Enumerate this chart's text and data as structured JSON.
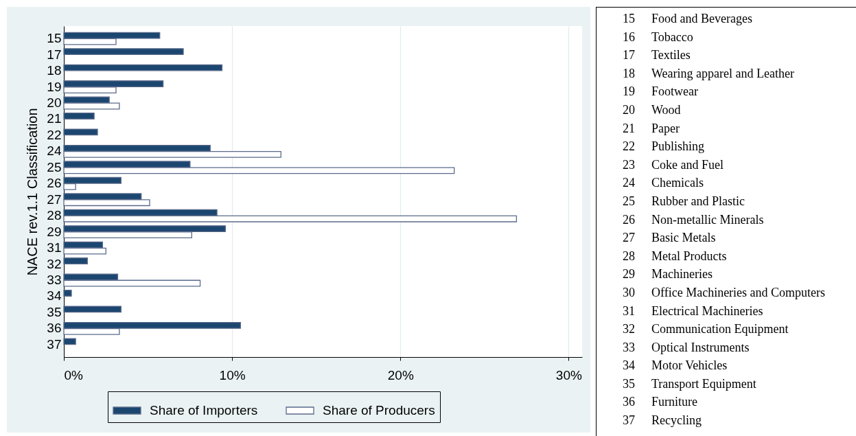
{
  "chart_data": {
    "type": "bar",
    "orientation": "horizontal",
    "ylabel": "NACE rev.1.1 Classification",
    "categories": [
      "15",
      "17",
      "18",
      "19",
      "20",
      "21",
      "22",
      "24",
      "25",
      "26",
      "27",
      "28",
      "29",
      "31",
      "32",
      "33",
      "34",
      "35",
      "36",
      "37"
    ],
    "series": [
      {
        "name": "Share of Importers",
        "color": "#1b4670",
        "values": [
          5.7,
          7.1,
          9.4,
          5.9,
          2.7,
          1.8,
          2.0,
          8.7,
          7.5,
          3.4,
          4.6,
          9.1,
          9.6,
          2.3,
          1.4,
          3.2,
          0.45,
          3.4,
          10.5,
          0.7
        ]
      },
      {
        "name": "Share of Producers",
        "color": "#ffffff",
        "values": [
          3.1,
          null,
          null,
          3.1,
          3.3,
          null,
          null,
          12.9,
          23.2,
          0.7,
          5.1,
          26.9,
          7.6,
          2.5,
          null,
          8.1,
          null,
          null,
          3.3,
          null
        ]
      }
    ],
    "xlim": [
      0,
      30.8
    ],
    "xticks": [
      {
        "value": 0,
        "label": "0%"
      },
      {
        "value": 10,
        "label": "10%"
      },
      {
        "value": 20,
        "label": "20%"
      },
      {
        "value": 30,
        "label": "30%"
      }
    ],
    "grid": "x",
    "legend": "bottom",
    "annotations": [
      "15 Food and Beverages",
      "16 Tobacco",
      "17 Textiles",
      "18 Wearing apparel and Leather",
      "19 Footwear",
      "20 Wood",
      "21 Paper",
      "22 Publishing",
      "23 Coke and Fuel",
      "24 Chemicals",
      "25 Rubber and Plastic",
      "26 Non-metallic Minerals",
      "27 Basic Metals",
      "28 Metal Products",
      "29 Machineries",
      "30 Office Machineries and Computers",
      "31 Electrical Machineries",
      "32 Communication Equipment",
      "33 Optical Instruments",
      "34 Motor Vehicles",
      "35 Transport Equipment",
      "36 Furniture",
      "37 Recycling"
    ]
  }
}
